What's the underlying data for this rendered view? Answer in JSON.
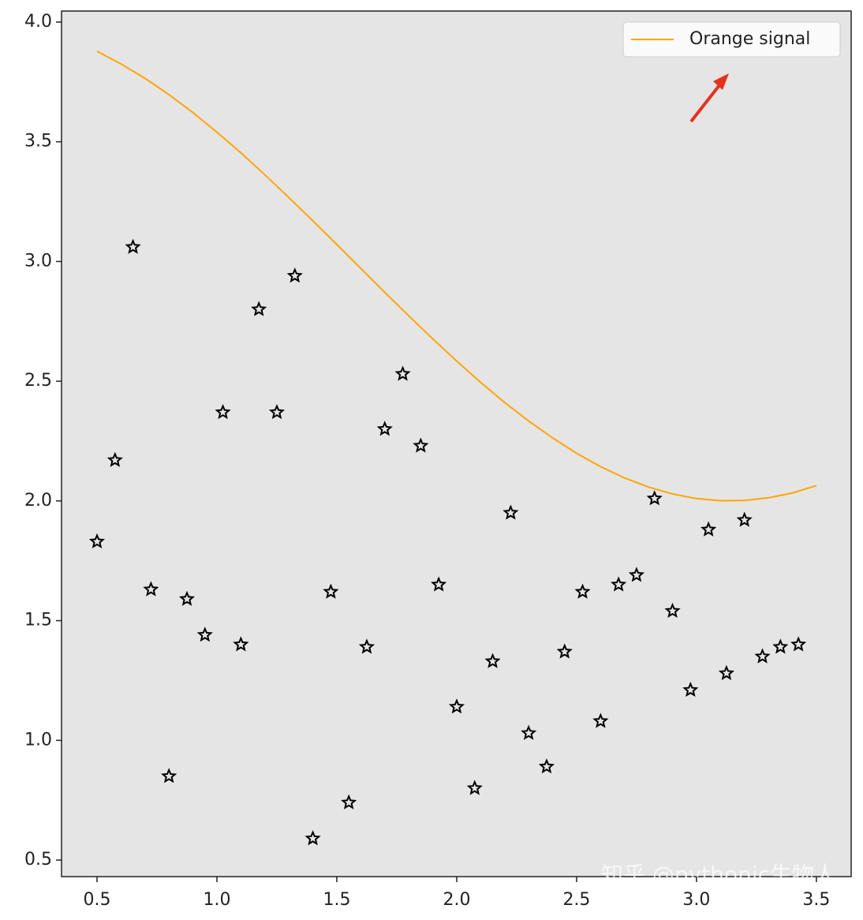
{
  "chart_data": {
    "type": "scatter",
    "xlim": [
      0.352,
      3.645
    ],
    "ylim": [
      0.431,
      4.046
    ],
    "xticks": [
      0.5,
      1.0,
      1.5,
      2.0,
      2.5,
      3.0,
      3.5
    ],
    "yticks": [
      0.5,
      1.0,
      1.5,
      2.0,
      2.5,
      3.0,
      3.5,
      4.0
    ],
    "background": "#e5e5e5",
    "legend": "upper right",
    "watermark": "知乎 @pythonic生物人",
    "series": [
      {
        "name": "Orange signal",
        "type": "line",
        "color": "#ffa500",
        "x": [
          0.5,
          0.6,
          0.7,
          0.8,
          0.9,
          1.0,
          1.1,
          1.2,
          1.3,
          1.4,
          1.5,
          1.6,
          1.7,
          1.8,
          1.9,
          2.0,
          2.1,
          2.2,
          2.3,
          2.4,
          2.5,
          2.6,
          2.7,
          2.8,
          2.9,
          3.0,
          3.1,
          3.2,
          3.3,
          3.4,
          3.5
        ],
        "values": [
          3.878,
          3.825,
          3.765,
          3.697,
          3.622,
          3.54,
          3.454,
          3.362,
          3.267,
          3.17,
          3.071,
          2.971,
          2.871,
          2.773,
          2.677,
          2.584,
          2.495,
          2.411,
          2.334,
          2.263,
          2.199,
          2.143,
          2.096,
          2.058,
          2.029,
          2.01,
          2.001,
          2.002,
          2.013,
          2.033,
          2.064
        ]
      },
      {
        "type": "scatter",
        "marker": "star",
        "color": "#000000",
        "x": [
          0.5,
          0.575,
          0.65,
          0.725,
          0.8,
          0.875,
          0.95,
          1.025,
          1.1,
          1.175,
          1.25,
          1.325,
          1.4,
          1.475,
          1.55,
          1.625,
          1.7,
          1.775,
          1.85,
          1.925,
          2.0,
          2.075,
          2.15,
          2.225,
          2.3,
          2.375,
          2.45,
          2.525,
          2.6,
          2.675,
          2.75,
          2.825,
          2.9,
          2.975,
          3.05,
          3.125,
          3.2,
          3.275,
          3.35,
          3.425
        ],
        "values": [
          1.83,
          2.17,
          3.06,
          1.63,
          0.85,
          1.59,
          1.44,
          2.37,
          1.4,
          2.8,
          2.37,
          2.94,
          0.59,
          1.62,
          0.74,
          1.39,
          2.3,
          2.53,
          2.23,
          1.65,
          1.14,
          0.8,
          1.33,
          1.95,
          1.03,
          0.89,
          1.37,
          1.62,
          1.08,
          1.65,
          1.69,
          2.01,
          1.54,
          1.21,
          1.88,
          1.28,
          1.92,
          1.35,
          1.39,
          1.4
        ]
      }
    ]
  }
}
